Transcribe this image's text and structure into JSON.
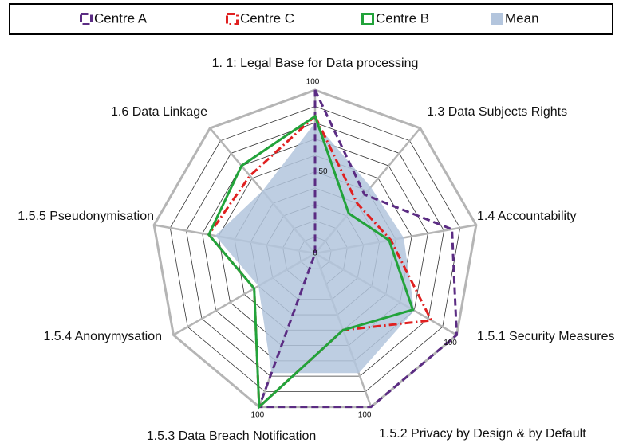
{
  "chart_data": {
    "type": "radar",
    "categories": [
      "1. 1: Legal Base for Data processing",
      "1.3 Data Subjects Rights",
      "1.4 Accountability",
      "1.5.1 Security Measures",
      "1.5.2 Privacy by Design & by Default",
      "1.5.3 Data Breach Notification",
      "1.5.4 Anonymysation",
      "1.5.5 Pseudonymisation",
      "1.6 Data Linkage"
    ],
    "rlim": [
      0,
      100
    ],
    "rticks": [
      0,
      50
    ],
    "grid_step": 10,
    "series": [
      {
        "name": "Centre A",
        "color": "#5b2c83",
        "style": "dashed",
        "values": [
          100,
          47,
          85,
          100,
          100,
          100,
          0,
          0,
          0
        ],
        "value_labels": [
          "100",
          null,
          null,
          "100",
          "100",
          "100",
          null,
          null,
          null
        ]
      },
      {
        "name": "Centre C",
        "color": "#e02020",
        "style": "dashdot",
        "values": [
          84,
          40,
          47,
          82,
          50,
          100,
          43,
          66,
          62
        ]
      },
      {
        "name": "Centre B",
        "color": "#22a33a",
        "style": "solid",
        "values": [
          84,
          32,
          46,
          69,
          50,
          100,
          43,
          66,
          70
        ]
      },
      {
        "name": "Mean",
        "color": "#b3c5dd",
        "style": "area",
        "values": [
          80,
          53,
          55,
          70,
          78,
          78,
          40,
          62,
          50
        ]
      }
    ]
  }
}
